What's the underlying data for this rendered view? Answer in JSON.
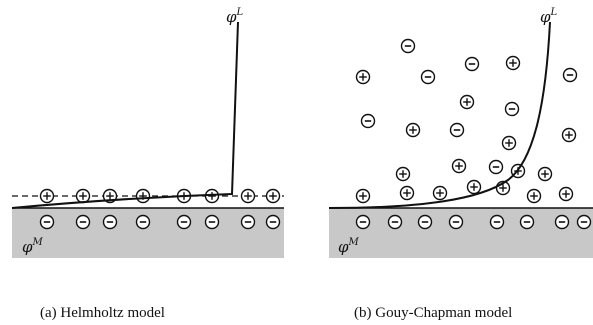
{
  "panels": [
    {
      "id": "a",
      "caption": "(a) Helmholtz model",
      "potential_solution_label": "φ",
      "potential_solution_sup": "L",
      "potential_metal_label": "φ",
      "potential_metal_sup": "M",
      "positive_ion_symbol": "+",
      "negative_ion_symbol": "-"
    },
    {
      "id": "b",
      "caption": "(b) Gouy-Chapman model",
      "potential_solution_label": "φ",
      "potential_solution_sup": "L",
      "potential_metal_label": "φ",
      "potential_metal_sup": "M",
      "positive_ion_symbol": "+",
      "negative_ion_symbol": "-"
    }
  ],
  "colors": {
    "electrode_fill": "#c8c8c8",
    "line": "#111111"
  }
}
